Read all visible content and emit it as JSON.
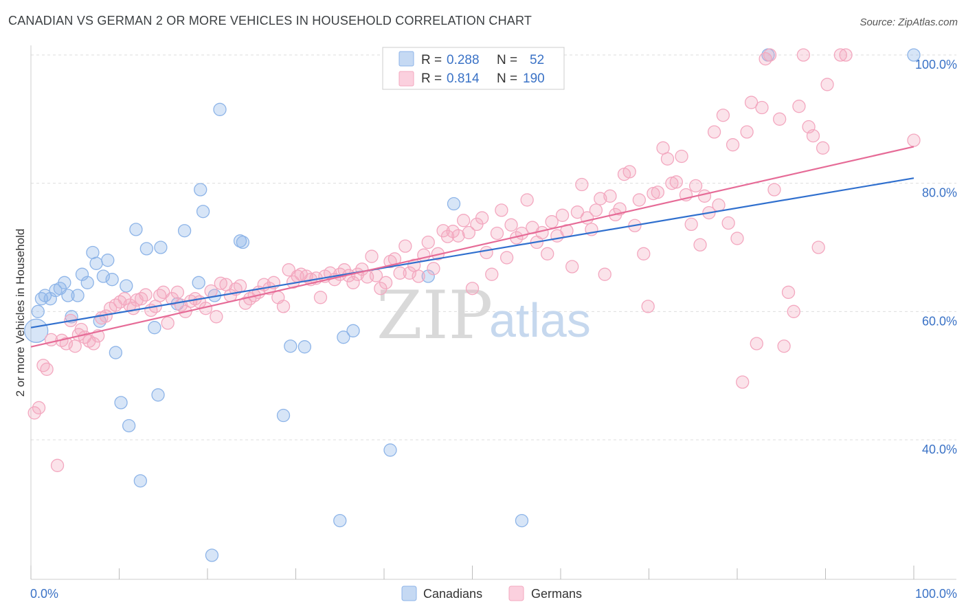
{
  "chart_data": {
    "type": "scatter",
    "title": "CANADIAN VS GERMAN 2 OR MORE VEHICLES IN HOUSEHOLD CORRELATION CHART",
    "source": "Source: ZipAtlas.com",
    "xlabel": "",
    "ylabel": "2 or more Vehicles in Household",
    "xlim": [
      0,
      100
    ],
    "ylim": [
      20,
      102
    ],
    "x_tick_labels": [
      "0.0%",
      "100.0%"
    ],
    "y_ticks": [
      40,
      60,
      80,
      100
    ],
    "y_tick_labels": [
      "40.0%",
      "60.0%",
      "80.0%",
      "100.0%"
    ],
    "grid": true,
    "watermark": {
      "part1": "ZIP",
      "part2": "atlas"
    },
    "stats": [
      {
        "r_label": "R =",
        "r_value": "0.288",
        "n_label": "N =",
        "n_value": "52"
      },
      {
        "r_label": "R =",
        "r_value": "0.814",
        "n_label": "N =",
        "n_value": "190"
      }
    ],
    "series": [
      {
        "name": "Canadians",
        "color": "#8db4e8",
        "line_color": "#2f6fce",
        "trend": {
          "x": [
            0,
            100
          ],
          "y": [
            57.5,
            80.8
          ]
        },
        "points": [
          [
            0.6,
            57
          ],
          [
            0.8,
            60
          ],
          [
            1.2,
            62
          ],
          [
            1.6,
            62.5
          ],
          [
            2.2,
            62
          ],
          [
            2.8,
            63.3
          ],
          [
            3.3,
            63.6
          ],
          [
            3.8,
            64.5
          ],
          [
            4.2,
            62.5
          ],
          [
            4.6,
            59.2
          ],
          [
            5.3,
            62.5
          ],
          [
            5.8,
            65.8
          ],
          [
            6.4,
            64.5
          ],
          [
            7,
            69.2
          ],
          [
            7.4,
            67.5
          ],
          [
            7.8,
            58.5
          ],
          [
            8.2,
            65.5
          ],
          [
            8.7,
            68
          ],
          [
            9.2,
            65
          ],
          [
            9.6,
            53.6
          ],
          [
            10.2,
            45.8
          ],
          [
            10.8,
            64
          ],
          [
            11.1,
            42.2
          ],
          [
            11.9,
            72.8
          ],
          [
            12.4,
            33.6
          ],
          [
            13.1,
            69.8
          ],
          [
            14,
            57.5
          ],
          [
            14.4,
            47
          ],
          [
            14.7,
            70
          ],
          [
            16.6,
            61.2
          ],
          [
            17.4,
            72.6
          ],
          [
            19,
            64.5
          ],
          [
            19.2,
            79
          ],
          [
            19.5,
            75.6
          ],
          [
            20.5,
            22
          ],
          [
            20.8,
            62.5
          ],
          [
            21.4,
            91.5
          ],
          [
            23.7,
            71
          ],
          [
            24,
            70.8
          ],
          [
            28.6,
            43.8
          ],
          [
            29.4,
            54.6
          ],
          [
            31,
            54.5
          ],
          [
            35,
            27.4
          ],
          [
            35.4,
            56
          ],
          [
            36.5,
            57
          ],
          [
            40.7,
            38.4
          ],
          [
            45,
            65.5
          ],
          [
            47.9,
            76.8
          ],
          [
            55.6,
            27.4
          ],
          [
            56.4,
            100
          ],
          [
            83.5,
            100
          ],
          [
            100,
            100
          ]
        ]
      },
      {
        "name": "Germans",
        "color": "#f3a7bf",
        "line_color": "#e66b97",
        "trend": {
          "x": [
            0,
            100
          ],
          "y": [
            54.5,
            85.7
          ]
        },
        "points": [
          [
            0.4,
            44.2
          ],
          [
            0.9,
            45
          ],
          [
            1.4,
            51.6
          ],
          [
            1.8,
            51
          ],
          [
            2.3,
            55.6
          ],
          [
            3,
            36
          ],
          [
            3.5,
            55.5
          ],
          [
            4,
            55
          ],
          [
            4.5,
            58.6
          ],
          [
            5,
            54.6
          ],
          [
            5.4,
            56.4
          ],
          [
            5.7,
            57.2
          ],
          [
            6.1,
            56
          ],
          [
            6.6,
            55.4
          ],
          [
            7.1,
            55
          ],
          [
            7.6,
            56.2
          ],
          [
            8,
            59
          ],
          [
            8.5,
            59.3
          ],
          [
            9,
            60.5
          ],
          [
            9.6,
            61
          ],
          [
            10.1,
            61.5
          ],
          [
            10.6,
            62
          ],
          [
            11.2,
            61
          ],
          [
            11.6,
            60.5
          ],
          [
            12,
            61.8
          ],
          [
            12.5,
            62
          ],
          [
            13,
            62.6
          ],
          [
            13.6,
            60.2
          ],
          [
            14.1,
            60.8
          ],
          [
            14.6,
            62.5
          ],
          [
            15,
            63
          ],
          [
            15.5,
            58.2
          ],
          [
            16,
            62
          ],
          [
            16.6,
            63
          ],
          [
            17,
            61
          ],
          [
            17.5,
            60
          ],
          [
            18.1,
            61.6
          ],
          [
            18.6,
            62
          ],
          [
            19.1,
            61.5
          ],
          [
            19.8,
            60.5
          ],
          [
            20.4,
            63.2
          ],
          [
            21,
            59.2
          ],
          [
            21.5,
            64.4
          ],
          [
            22.1,
            64.2
          ],
          [
            22.6,
            62.5
          ],
          [
            23.2,
            63.5
          ],
          [
            23.7,
            64
          ],
          [
            24.3,
            61.3
          ],
          [
            24.8,
            62
          ],
          [
            25.3,
            62.5
          ],
          [
            25.8,
            63
          ],
          [
            26.4,
            64.2
          ],
          [
            27,
            63.6
          ],
          [
            27.5,
            64.5
          ],
          [
            28,
            62.2
          ],
          [
            28.6,
            60.8
          ],
          [
            29.2,
            66.5
          ],
          [
            29.7,
            64.6
          ],
          [
            30.2,
            65.5
          ],
          [
            30.6,
            65.8
          ],
          [
            31.2,
            65.5
          ],
          [
            31.7,
            65
          ],
          [
            32.3,
            65.2
          ],
          [
            32.8,
            62.2
          ],
          [
            33.3,
            65.5
          ],
          [
            33.9,
            66
          ],
          [
            34.4,
            65
          ],
          [
            35,
            65.8
          ],
          [
            35.5,
            66.5
          ],
          [
            36,
            65.6
          ],
          [
            36.5,
            64.5
          ],
          [
            37,
            65.8
          ],
          [
            37.5,
            66.6
          ],
          [
            38.1,
            65.4
          ],
          [
            38.6,
            68.6
          ],
          [
            39.1,
            65.6
          ],
          [
            39.6,
            63.6
          ],
          [
            40.2,
            64.5
          ],
          [
            40.7,
            67.8
          ],
          [
            41.2,
            68.2
          ],
          [
            41.8,
            66
          ],
          [
            42.4,
            70.2
          ],
          [
            42.9,
            66
          ],
          [
            43.4,
            67.2
          ],
          [
            43.9,
            65.5
          ],
          [
            44.5,
            68.8
          ],
          [
            45,
            70.8
          ],
          [
            45.6,
            66.7
          ],
          [
            46.1,
            69
          ],
          [
            46.7,
            72.6
          ],
          [
            47.2,
            71.7
          ],
          [
            47.8,
            72.5
          ],
          [
            48.4,
            71.8
          ],
          [
            49,
            74.2
          ],
          [
            49.6,
            72.3
          ],
          [
            50,
            63.6
          ],
          [
            50.5,
            73.6
          ],
          [
            51.1,
            74.6
          ],
          [
            51.6,
            69.2
          ],
          [
            52.2,
            65.8
          ],
          [
            52.8,
            72.2
          ],
          [
            53.3,
            75.8
          ],
          [
            53.9,
            68.4
          ],
          [
            54.4,
            73.5
          ],
          [
            55,
            71.5
          ],
          [
            55.6,
            72.2
          ],
          [
            56.2,
            77.4
          ],
          [
            56.8,
            73.1
          ],
          [
            57.3,
            70.8
          ],
          [
            57.9,
            72.3
          ],
          [
            58.5,
            69
          ],
          [
            59,
            74
          ],
          [
            59.6,
            71.8
          ],
          [
            60.2,
            75
          ],
          [
            60.7,
            72.6
          ],
          [
            61.3,
            67
          ],
          [
            61.9,
            75.5
          ],
          [
            62.4,
            79.8
          ],
          [
            63,
            74.6
          ],
          [
            63.5,
            72.8
          ],
          [
            64,
            75.8
          ],
          [
            64.5,
            77.6
          ],
          [
            65,
            65.8
          ],
          [
            65.6,
            78
          ],
          [
            66.2,
            75.1
          ],
          [
            66.7,
            76
          ],
          [
            67.2,
            81.4
          ],
          [
            67.8,
            81.8
          ],
          [
            68.4,
            73.4
          ],
          [
            68.9,
            77.4
          ],
          [
            69.4,
            69
          ],
          [
            69.9,
            60.8
          ],
          [
            70.5,
            78.4
          ],
          [
            71,
            78.6
          ],
          [
            71.6,
            85.5
          ],
          [
            72.1,
            83.8
          ],
          [
            72.6,
            80
          ],
          [
            73.1,
            80.2
          ],
          [
            73.7,
            84.2
          ],
          [
            74.2,
            78.2
          ],
          [
            74.8,
            73.6
          ],
          [
            75.3,
            79.6
          ],
          [
            75.8,
            70.4
          ],
          [
            76.3,
            78
          ],
          [
            76.8,
            75.4
          ],
          [
            77.4,
            88
          ],
          [
            77.9,
            76.6
          ],
          [
            78.4,
            90.6
          ],
          [
            79,
            73.8
          ],
          [
            79.5,
            86
          ],
          [
            80,
            71.4
          ],
          [
            80.6,
            49
          ],
          [
            81.1,
            88
          ],
          [
            81.6,
            92.6
          ],
          [
            82.2,
            55
          ],
          [
            82.8,
            91.8
          ],
          [
            83.2,
            99.4
          ],
          [
            83.7,
            100
          ],
          [
            84.2,
            79
          ],
          [
            84.8,
            90
          ],
          [
            85.3,
            54.6
          ],
          [
            85.8,
            63
          ],
          [
            86.4,
            60
          ],
          [
            87,
            92
          ],
          [
            87.5,
            100
          ],
          [
            88.1,
            88.8
          ],
          [
            88.6,
            87.4
          ],
          [
            89.2,
            70
          ],
          [
            89.7,
            85.5
          ],
          [
            90.2,
            95.4
          ],
          [
            91.7,
            100
          ],
          [
            92.3,
            100
          ],
          [
            100,
            86.7
          ]
        ]
      }
    ]
  },
  "legend": [
    {
      "label": "Canadians",
      "color": "#8db4e8"
    },
    {
      "label": "Germans",
      "color": "#f3a7bf"
    }
  ]
}
